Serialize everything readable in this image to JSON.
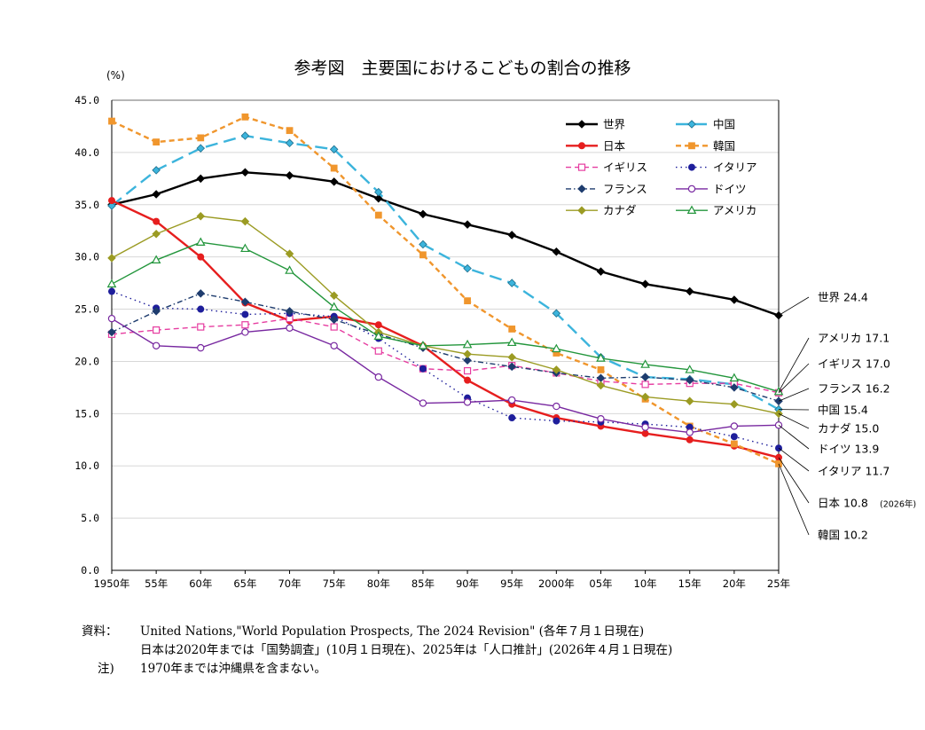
{
  "title": "参考図　主要国におけるこどもの割合の推移",
  "unit": "(%)",
  "notes": {
    "source_label": "資料：",
    "source_line1": "United Nations,\"World Population Prospects, The 2024 Revision\"  (各年７月１日現在)",
    "source_line2": "日本は2020年までは「国勢調査」(10月１日現在)、2025年は「人口推計」(2026年４月１日現在)",
    "note_label": "注)",
    "note_line": "1970年までは沖縄県を含まない。"
  },
  "chart_data": {
    "type": "line",
    "title": "参考図　主要国におけるこどもの割合の推移",
    "ylabel": "(%)",
    "xlabel": "",
    "ylim": [
      0,
      45
    ],
    "y_ticks": [
      "0.0",
      "5.0",
      "10.0",
      "15.0",
      "20.0",
      "25.0",
      "30.0",
      "35.0",
      "40.0",
      "45.0"
    ],
    "categories": [
      "1950年",
      "55年",
      "60年",
      "65年",
      "70年",
      "75年",
      "80年",
      "85年",
      "90年",
      "95年",
      "2000年",
      "05年",
      "10年",
      "15年",
      "20年",
      "25年"
    ],
    "grid": "horizontal",
    "legend_position": "top-right",
    "series": [
      {
        "name": "世界",
        "color": "#000000",
        "dash": "solid",
        "marker": "diamond-filled",
        "values": [
          35.0,
          36.0,
          37.5,
          38.1,
          37.8,
          37.2,
          35.6,
          34.1,
          33.1,
          32.1,
          30.5,
          28.6,
          27.4,
          26.7,
          25.9,
          24.4
        ]
      },
      {
        "name": "中国",
        "color": "#3cb4dc",
        "dash": "longdash",
        "marker": "diamond-lightblue",
        "values": [
          34.9,
          38.3,
          40.4,
          41.6,
          40.9,
          40.3,
          36.2,
          31.2,
          28.9,
          27.5,
          24.6,
          20.4,
          18.5,
          18.3,
          17.8,
          15.4
        ]
      },
      {
        "name": "日本",
        "color": "#e61e1e",
        "dash": "solid",
        "marker": "circle-red",
        "values": [
          35.4,
          33.4,
          30.0,
          25.6,
          23.9,
          24.3,
          23.5,
          21.5,
          18.2,
          15.9,
          14.6,
          13.8,
          13.1,
          12.5,
          11.9,
          10.8
        ]
      },
      {
        "name": "韓国",
        "color": "#f0962d",
        "dash": "dash",
        "marker": "square-orange",
        "values": [
          43.0,
          41.0,
          41.4,
          43.4,
          42.1,
          38.5,
          34.0,
          30.2,
          25.8,
          23.1,
          20.8,
          19.2,
          16.4,
          13.8,
          12.1,
          10.2
        ]
      },
      {
        "name": "イギリス",
        "color": "#e63ca0",
        "dash": "dash",
        "marker": "square-open",
        "values": [
          22.6,
          23.0,
          23.3,
          23.5,
          24.1,
          23.3,
          21.0,
          19.3,
          19.1,
          19.6,
          18.9,
          18.1,
          17.8,
          17.9,
          17.9,
          17.0
        ]
      },
      {
        "name": "イタリア",
        "color": "#1e1e9b",
        "dash": "dotted",
        "marker": "circle-navy",
        "values": [
          26.7,
          25.1,
          25.0,
          24.5,
          24.6,
          24.3,
          22.2,
          19.3,
          16.5,
          14.6,
          14.3,
          14.2,
          14.0,
          13.7,
          12.8,
          11.7
        ]
      },
      {
        "name": "フランス",
        "color": "#1e3c6e",
        "dash": "dashdot",
        "marker": "diamond-navy",
        "values": [
          22.8,
          24.8,
          26.5,
          25.7,
          24.8,
          24.0,
          22.6,
          21.3,
          20.1,
          19.5,
          18.9,
          18.4,
          18.5,
          18.2,
          17.5,
          16.2
        ]
      },
      {
        "name": "ドイツ",
        "color": "#7828a0",
        "dash": "solid",
        "marker": "circle-open",
        "values": [
          24.1,
          21.5,
          21.3,
          22.8,
          23.2,
          21.5,
          18.5,
          16.0,
          16.1,
          16.3,
          15.7,
          14.5,
          13.7,
          13.2,
          13.8,
          13.9
        ]
      },
      {
        "name": "カナダ",
        "color": "#9b9b23",
        "dash": "solid",
        "marker": "diamond-olive",
        "values": [
          29.9,
          32.2,
          33.9,
          33.4,
          30.3,
          26.3,
          22.8,
          21.5,
          20.7,
          20.4,
          19.2,
          17.7,
          16.6,
          16.2,
          15.9,
          15.0
        ]
      },
      {
        "name": "アメリカ",
        "color": "#23963c",
        "dash": "solid",
        "marker": "triangle-open",
        "values": [
          27.4,
          29.7,
          31.4,
          30.8,
          28.7,
          25.2,
          22.4,
          21.5,
          21.6,
          21.8,
          21.2,
          20.3,
          19.7,
          19.2,
          18.4,
          17.1
        ]
      }
    ],
    "end_labels": [
      {
        "series": "世界",
        "text": "世界 24.4"
      },
      {
        "series": "アメリカ",
        "text": "アメリカ 17.1"
      },
      {
        "series": "イギリス",
        "text": "イギリス 17.0"
      },
      {
        "series": "フランス",
        "text": "フランス 16.2"
      },
      {
        "series": "中国",
        "text": "中国 15.4"
      },
      {
        "series": "カナダ",
        "text": "カナダ 15.0"
      },
      {
        "series": "ドイツ",
        "text": "ドイツ 13.9"
      },
      {
        "series": "イタリア",
        "text": "イタリア 11.7"
      },
      {
        "series": "日本",
        "text": "日本 10.8",
        "suffix": "(2026年)"
      },
      {
        "series": "韓国",
        "text": "韓国 10.2"
      }
    ]
  }
}
